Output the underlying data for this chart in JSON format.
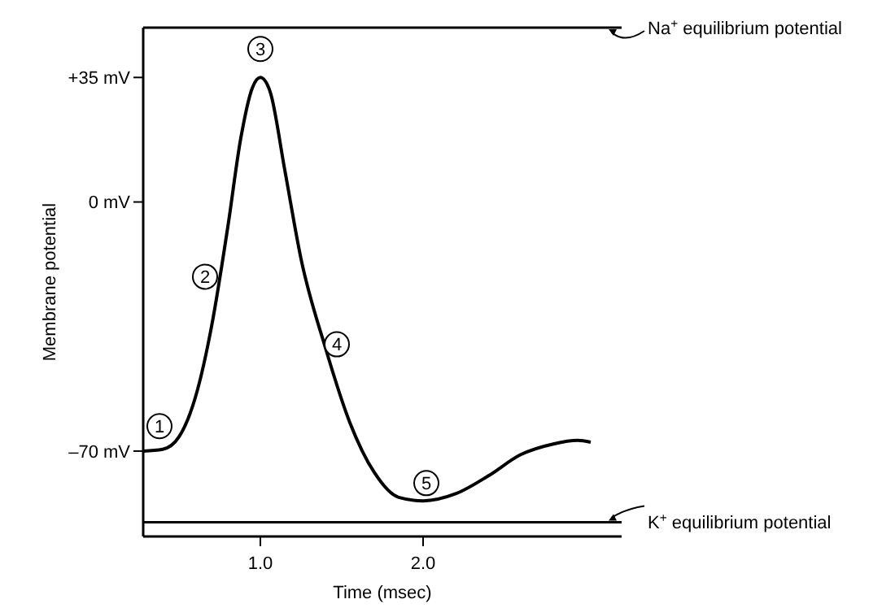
{
  "chart_data": {
    "type": "line",
    "xlabel": "Time (msec)",
    "ylabel": "Membrane potential",
    "xlim": [
      0.28,
      3.22
    ],
    "ylim": [
      -94,
      49
    ],
    "xticks": [
      {
        "value": 1,
        "label": "1.0"
      },
      {
        "value": 2,
        "label": "2.0"
      }
    ],
    "yticks": [
      {
        "value": -70,
        "label": "–70 mV"
      },
      {
        "value": 0,
        "label": "0 mV"
      },
      {
        "value": 35,
        "label": "+35 mV"
      }
    ],
    "grid": false,
    "marker": "none",
    "line_style": "solid",
    "x": [
      0.28,
      0.4,
      0.5,
      0.6,
      0.7,
      0.8,
      0.88,
      0.95,
      1.0,
      1.06,
      1.15,
      1.25,
      1.4,
      1.55,
      1.7,
      1.85,
      2.0,
      2.2,
      2.4,
      2.6,
      2.8,
      2.95,
      3.03
    ],
    "series": [
      {
        "color": "#000000",
        "values": [
          -70,
          -69.5,
          -66,
          -55,
          -35,
          -7,
          18,
          32,
          35,
          31,
          9,
          -16,
          -41,
          -62,
          -76,
          -83,
          -84,
          -82,
          -77,
          -71,
          -68,
          -67,
          -67.5
        ]
      }
    ],
    "ref_lines": [
      {
        "axis": "y",
        "value": 49,
        "label": "Na$^{+}$ equilibrium potential",
        "color": "#000000"
      },
      {
        "axis": "y",
        "value": -90,
        "label": "K$^{+}$ equilibrium potential",
        "color": "#000000"
      }
    ],
    "annotations": [
      {
        "text": "1",
        "x": 0.38,
        "y": -63
      },
      {
        "text": "2",
        "x": 0.66,
        "y": -21
      },
      {
        "text": "3",
        "x": 1.0,
        "y": 43
      },
      {
        "text": "4",
        "x": 1.47,
        "y": -40
      },
      {
        "text": "5",
        "x": 2.02,
        "y": -79
      }
    ]
  }
}
